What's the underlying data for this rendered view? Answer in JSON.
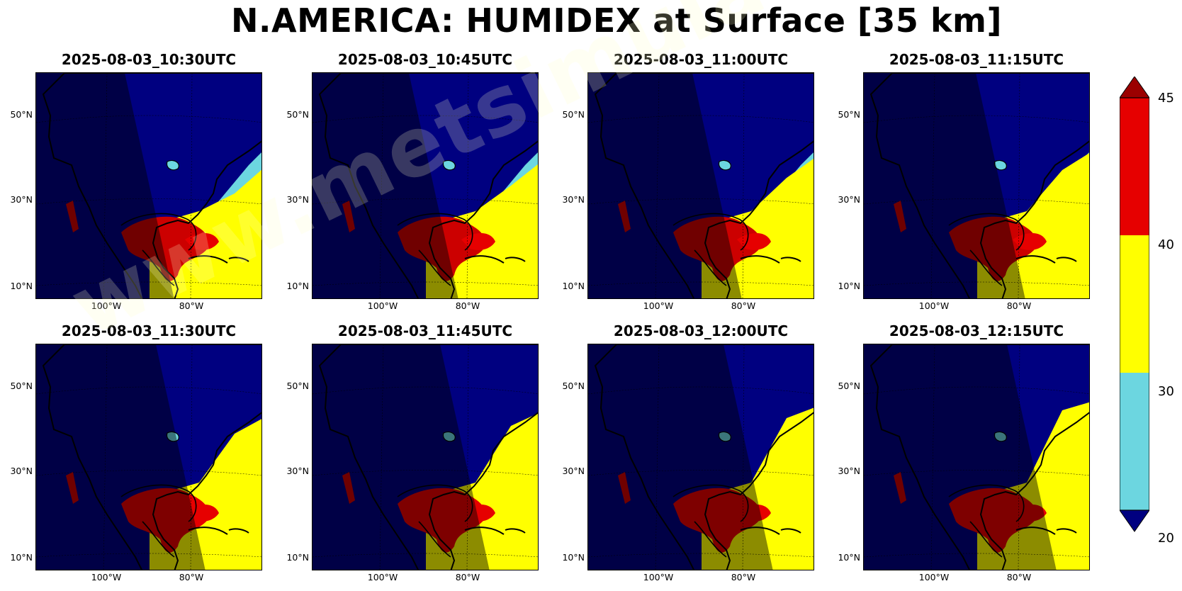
{
  "title": "N.AMERICA: HUMIDEX at Surface [35 km]",
  "watermark": "www.metsimulator.com",
  "panels": [
    {
      "time": "2025-08-03_10:30UTC",
      "night_shift": 0
    },
    {
      "time": "2025-08-03_10:45UTC",
      "night_shift": 1
    },
    {
      "time": "2025-08-03_11:00UTC",
      "night_shift": 2
    },
    {
      "time": "2025-08-03_11:15UTC",
      "night_shift": 3
    },
    {
      "time": "2025-08-03_11:30UTC",
      "night_shift": 4
    },
    {
      "time": "2025-08-03_11:45UTC",
      "night_shift": 5
    },
    {
      "time": "2025-08-03_12:00UTC",
      "night_shift": 6
    },
    {
      "time": "2025-08-03_12:15UTC",
      "night_shift": 7
    }
  ],
  "lat_labels": [
    "50°N",
    "30°N",
    "10°N"
  ],
  "lon_labels": [
    "100°W",
    "80°W"
  ],
  "colorbar": {
    "ticks": [
      "45",
      "40",
      "30",
      "20"
    ],
    "levels": [
      {
        "range": "<20",
        "color": "#000080"
      },
      {
        "range": "20-30",
        "color": "#6cd6e0"
      },
      {
        "range": "30-40",
        "color": "#ffff00"
      },
      {
        "range": "40-45",
        "color": "#e60000"
      },
      {
        "range": ">45",
        "color": "#9b0000"
      }
    ]
  }
}
